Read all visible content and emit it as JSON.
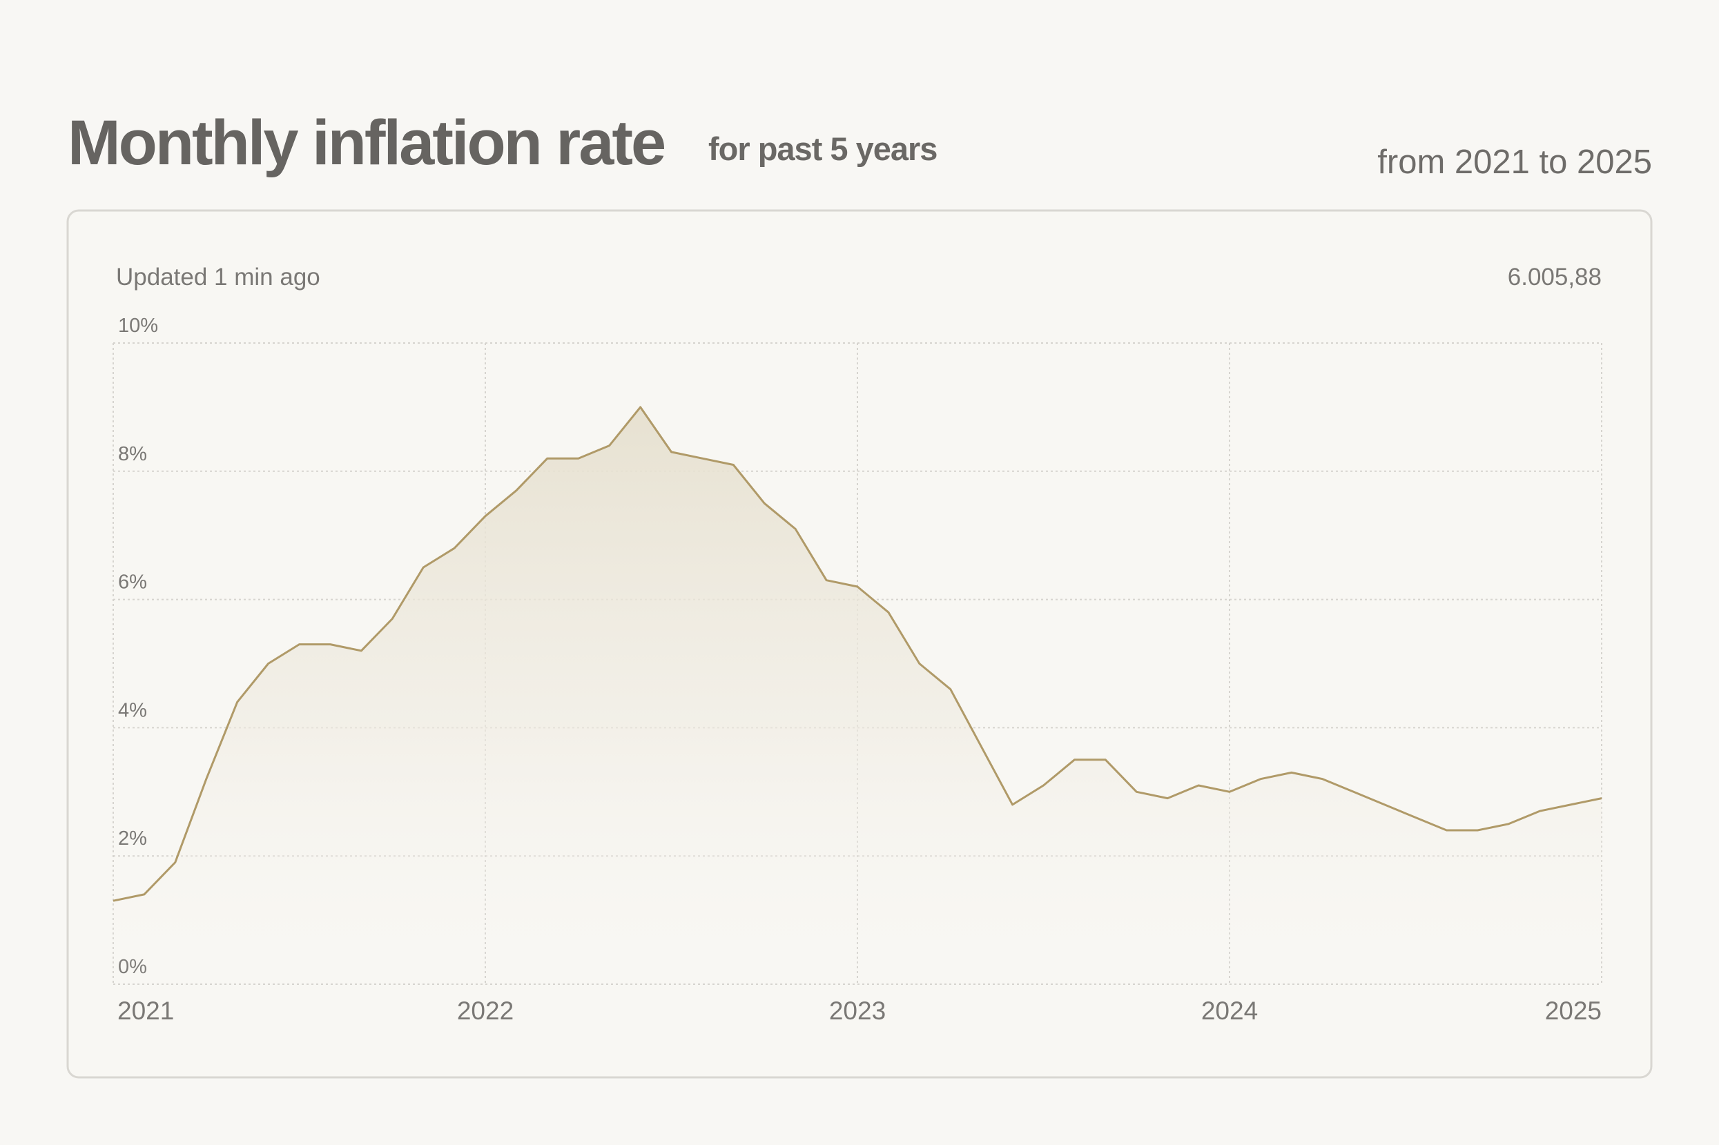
{
  "chart_data": {
    "type": "area",
    "title": "Monthly inflation rate",
    "subtitle": "for past 5 years",
    "date_range": "from 2021 to 2025",
    "updated": "Updated 1 min ago",
    "headline_value": "6.005,88",
    "categories": [
      "2021",
      null,
      null,
      null,
      null,
      null,
      null,
      null,
      null,
      null,
      null,
      null,
      "2022",
      null,
      null,
      null,
      null,
      null,
      null,
      null,
      null,
      null,
      null,
      null,
      "2023",
      null,
      null,
      null,
      null,
      null,
      null,
      null,
      null,
      null,
      null,
      null,
      "2024",
      null,
      null,
      null,
      null,
      null,
      null,
      null,
      null,
      null,
      null,
      null,
      "2025"
    ],
    "values": [
      1.3,
      1.4,
      1.9,
      3.2,
      4.4,
      5.0,
      5.3,
      5.3,
      5.2,
      5.7,
      6.5,
      6.8,
      7.3,
      7.7,
      8.2,
      8.2,
      8.4,
      9.0,
      8.3,
      8.2,
      8.1,
      7.5,
      7.1,
      6.3,
      6.2,
      5.8,
      5.0,
      4.6,
      3.7,
      2.8,
      3.1,
      3.5,
      3.5,
      3.0,
      2.9,
      3.1,
      3.0,
      3.2,
      3.3,
      3.2,
      3.0,
      2.8,
      2.6,
      2.4,
      2.4,
      2.5,
      2.7,
      2.8,
      2.9
    ],
    "color": "#b09a68",
    "ylim": [
      0,
      10
    ],
    "yticks": [
      {
        "value": 0,
        "label": "0%"
      },
      {
        "value": 2,
        "label": "2%"
      },
      {
        "value": 4,
        "label": "4%"
      },
      {
        "value": 6,
        "label": "6%"
      },
      {
        "value": 8,
        "label": "8%"
      },
      {
        "value": 10,
        "label": "10%"
      }
    ],
    "grid": true
  }
}
